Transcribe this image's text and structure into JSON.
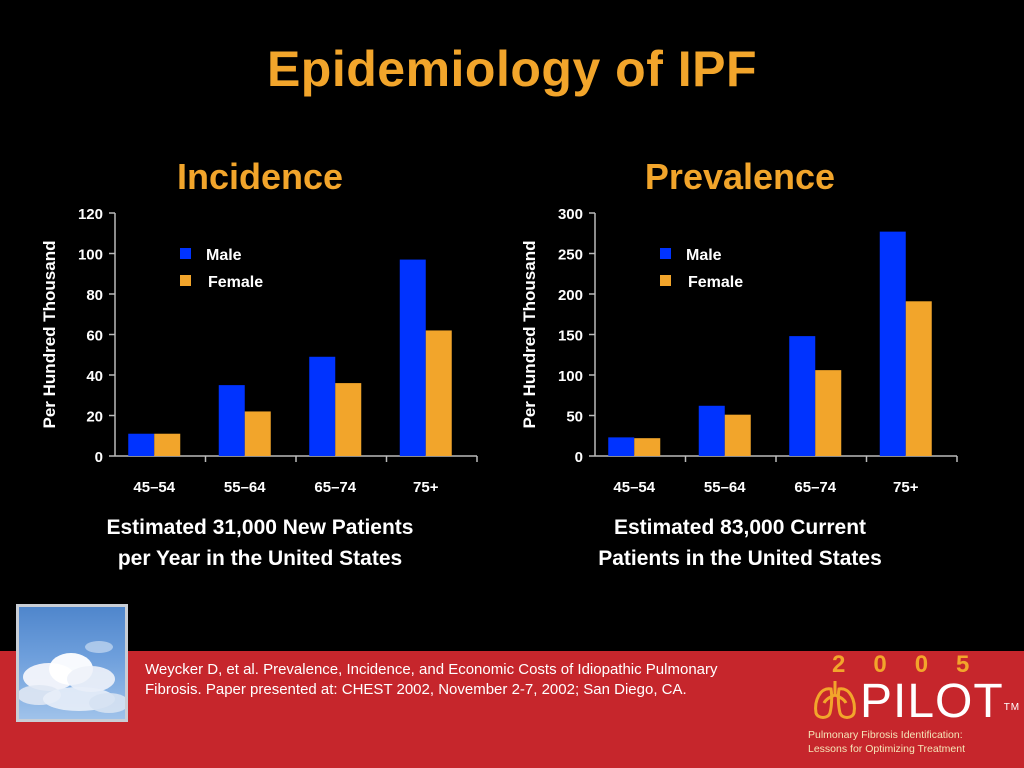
{
  "title": "Epidemiology of IPF",
  "chart_data": [
    {
      "type": "bar",
      "title": "Incidence",
      "xlabel": "",
      "ylabel": "Per Hundred Thousand",
      "ylim": [
        0,
        120
      ],
      "yticks": [
        "0",
        "20",
        "40",
        "60",
        "80",
        "100",
        "120"
      ],
      "categories": [
        "45–54",
        "55–64",
        "65–74",
        "75+"
      ],
      "series": [
        {
          "name": "Male",
          "color": "#0033ff",
          "values": [
            11,
            35,
            49,
            97
          ]
        },
        {
          "name": "Female",
          "color": "#f2a52b",
          "values": [
            11,
            22,
            36,
            62
          ]
        }
      ],
      "legend": "top-left",
      "grid": false,
      "caption_lines": [
        "Estimated 31,000 New Patients",
        "per Year in the United States"
      ]
    },
    {
      "type": "bar",
      "title": "Prevalence",
      "xlabel": "",
      "ylabel": "Per Hundred Thousand",
      "ylim": [
        0,
        300
      ],
      "yticks": [
        "0",
        "50",
        "100",
        "150",
        "200",
        "250",
        "300"
      ],
      "categories": [
        "45–54",
        "55–64",
        "65–74",
        "75+"
      ],
      "series": [
        {
          "name": "Male",
          "color": "#0033ff",
          "values": [
            23,
            62,
            148,
            277
          ]
        },
        {
          "name": "Female",
          "color": "#f2a52b",
          "values": [
            22,
            51,
            106,
            191
          ]
        }
      ],
      "legend": "top-left",
      "grid": false,
      "caption_lines": [
        "Estimated 83,000 Current",
        "Patients in the United States"
      ]
    }
  ],
  "footer": {
    "citation_lines": [
      "Weycker D, et al. Prevalence, Incidence, and Economic Costs of Idiopathic Pulmonary",
      "Fibrosis. Paper presented at: CHEST 2002, November 2-7, 2002; San Diego, CA."
    ],
    "logo_year": "2005",
    "logo_wordmark": "PILOT",
    "logo_tm": "TM",
    "logo_tagline_lines": [
      "Pulmonary Fibrosis Identification:",
      "Lessons for Optimizing Treatment"
    ],
    "band_color": "#c6262c"
  }
}
